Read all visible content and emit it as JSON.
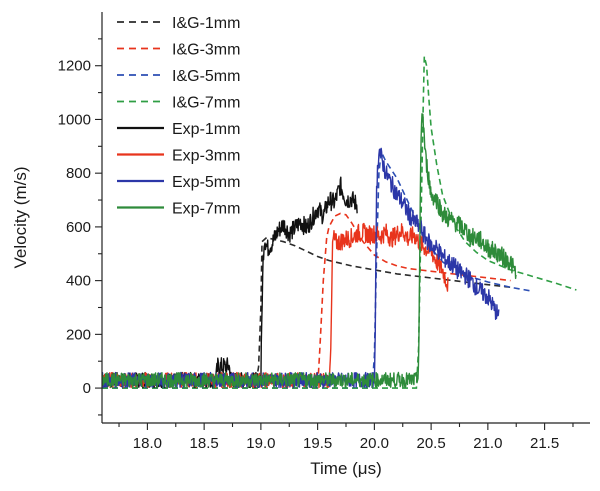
{
  "chart_data": {
    "type": "line",
    "title": "",
    "xlabel": "Time (μs)",
    "ylabel": "Velocity (m/s)",
    "xlim": [
      17.6,
      21.9
    ],
    "ylim": [
      -130,
      1400
    ],
    "x_ticks": [
      18.0,
      18.5,
      19.0,
      19.5,
      20.0,
      20.5,
      21.0,
      21.5
    ],
    "x_tick_labels": [
      "18.0",
      "18.5",
      "19.0",
      "19.5",
      "20.0",
      "20.5",
      "21.0",
      "21.5"
    ],
    "y_ticks": [
      0,
      200,
      400,
      600,
      800,
      1000,
      1200
    ],
    "y_tick_labels": [
      "0",
      "200",
      "400",
      "600",
      "800",
      "1000",
      "1200"
    ],
    "legend_position": "top-left",
    "series": [
      {
        "name": "I&G-1mm",
        "color": "#2b2b2b",
        "style": "dashed",
        "x": [
          17.6,
          18.95,
          18.98,
          19.0,
          19.01,
          19.05,
          19.1,
          19.2,
          19.3,
          19.4,
          19.5,
          19.6,
          19.8,
          20.0,
          20.2,
          20.4,
          20.6,
          20.8,
          21.0,
          21.2
        ],
        "y": [
          0,
          0,
          80,
          300,
          545,
          560,
          555,
          545,
          530,
          510,
          490,
          475,
          455,
          440,
          425,
          415,
          405,
          395,
          385,
          375
        ]
      },
      {
        "name": "I&G-3mm",
        "color": "#e8341c",
        "style": "dashed",
        "x": [
          17.6,
          19.5,
          19.52,
          19.55,
          19.58,
          19.6,
          19.65,
          19.7,
          19.75,
          19.8,
          19.9,
          20.0,
          20.1,
          20.2,
          20.3,
          20.4,
          20.6,
          20.8,
          21.0,
          21.2
        ],
        "y": [
          0,
          0,
          150,
          400,
          560,
          600,
          640,
          650,
          645,
          615,
          545,
          495,
          470,
          455,
          445,
          440,
          430,
          420,
          410,
          400
        ]
      },
      {
        "name": "I&G-5mm",
        "color": "#2c4fb4",
        "style": "dashed",
        "x": [
          17.6,
          19.98,
          20.0,
          20.02,
          20.04,
          20.06,
          20.1,
          20.2,
          20.3,
          20.4,
          20.5,
          20.6,
          20.7,
          20.8,
          21.0,
          21.2,
          21.4
        ],
        "y": [
          0,
          0,
          120,
          500,
          800,
          880,
          845,
          780,
          690,
          600,
          520,
          470,
          440,
          420,
          395,
          375,
          360
        ]
      },
      {
        "name": "I&G-7mm",
        "color": "#2f9e44",
        "style": "dashed",
        "x": [
          17.6,
          20.37,
          20.39,
          20.41,
          20.43,
          20.44,
          20.46,
          20.48,
          20.5,
          20.55,
          20.6,
          20.7,
          20.8,
          20.9,
          21.0,
          21.2,
          21.4,
          21.6,
          21.78
        ],
        "y": [
          0,
          0,
          150,
          600,
          1050,
          1235,
          1200,
          1080,
          970,
          830,
          720,
          610,
          545,
          505,
          475,
          440,
          415,
          390,
          365
        ]
      },
      {
        "name": "Exp-1mm",
        "color": "#111111",
        "style": "solid",
        "x": [
          17.6,
          18.6,
          18.62,
          18.72,
          18.74,
          19.0,
          19.01,
          19.02,
          19.03,
          19.06,
          19.1,
          19.15,
          19.2,
          19.25,
          19.3,
          19.35,
          19.4,
          19.45,
          19.5,
          19.55,
          19.6,
          19.65,
          19.7,
          19.75,
          19.8,
          19.85
        ],
        "y": [
          30,
          30,
          80,
          80,
          30,
          30,
          300,
          480,
          560,
          520,
          540,
          585,
          610,
          575,
          595,
          620,
          595,
          630,
          670,
          640,
          700,
          690,
          755,
          700,
          705,
          680
        ]
      },
      {
        "name": "Exp-3mm",
        "color": "#e8341c",
        "style": "solid",
        "x": [
          17.6,
          19.6,
          19.62,
          19.63,
          19.64,
          19.66,
          19.7,
          19.75,
          19.8,
          19.85,
          19.9,
          19.95,
          20.0,
          20.05,
          20.1,
          20.15,
          20.2,
          20.25,
          20.3,
          20.35,
          20.4,
          20.45,
          20.5,
          20.55,
          20.6,
          20.65
        ],
        "y": [
          30,
          30,
          200,
          520,
          560,
          540,
          545,
          555,
          560,
          575,
          580,
          570,
          575,
          565,
          580,
          555,
          575,
          585,
          555,
          570,
          540,
          520,
          510,
          470,
          440,
          380
        ]
      },
      {
        "name": "Exp-5mm",
        "color": "#2c37a8",
        "style": "solid",
        "x": [
          17.6,
          20.0,
          20.01,
          20.02,
          20.04,
          20.06,
          20.08,
          20.1,
          20.15,
          20.2,
          20.25,
          20.3,
          20.35,
          20.4,
          20.45,
          20.5,
          20.55,
          20.6,
          20.65,
          20.7,
          20.75,
          20.8,
          20.85,
          20.9,
          20.95,
          21.0,
          21.05,
          21.1
        ],
        "y": [
          30,
          30,
          300,
          750,
          895,
          860,
          830,
          800,
          760,
          720,
          690,
          650,
          620,
          600,
          560,
          530,
          520,
          490,
          470,
          455,
          430,
          420,
          400,
          375,
          355,
          340,
          300,
          265
        ]
      },
      {
        "name": "Exp-7mm",
        "color": "#2e8b3a",
        "style": "solid",
        "x": [
          17.6,
          20.38,
          20.39,
          20.4,
          20.41,
          20.42,
          20.43,
          20.45,
          20.48,
          20.5,
          20.55,
          20.6,
          20.65,
          20.7,
          20.75,
          20.8,
          20.85,
          20.9,
          20.95,
          21.0,
          21.05,
          21.1,
          21.15,
          21.2,
          21.25
        ],
        "y": [
          30,
          30,
          100,
          500,
          900,
          1040,
          1000,
          860,
          780,
          720,
          700,
          650,
          630,
          620,
          605,
          590,
          560,
          560,
          545,
          520,
          510,
          500,
          480,
          470,
          420
        ]
      }
    ]
  }
}
